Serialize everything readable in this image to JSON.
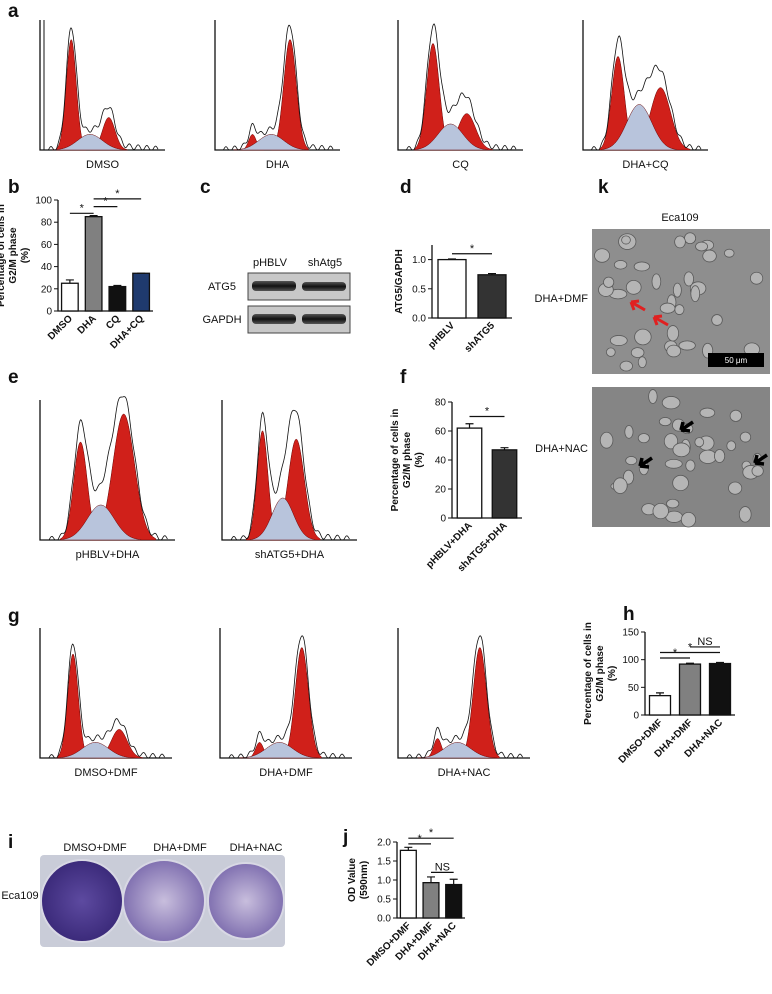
{
  "panel_letters": [
    "a",
    "b",
    "c",
    "d",
    "e",
    "f",
    "g",
    "h",
    "i",
    "j",
    "k"
  ],
  "flow": {
    "a": [
      "DMSO",
      "DHA",
      "CQ",
      "DHA+CQ"
    ],
    "e": [
      "pHBLV+DHA",
      "shATG5+DHA"
    ],
    "g": [
      "DMSO+DMF",
      "DHA+DMF",
      "DHA+NAC"
    ]
  },
  "blot": {
    "lanes": [
      "pHBLV",
      "shAtg5"
    ],
    "rows": [
      "ATG5",
      "GAPDH"
    ]
  },
  "micrograph": {
    "title": "Eca109",
    "rows": [
      "DHA+DMF",
      "DHA+NAC"
    ],
    "scale_bar": "50 μm"
  },
  "colony": {
    "lanes": [
      "DMSO+DMF",
      "DHA+DMF",
      "DHA+NAC"
    ],
    "row": "Eca109"
  },
  "chart_data": [
    {
      "type": "bar",
      "ylabel": [
        "Percentage of cells in",
        "G2/M phase",
        "(%)"
      ],
      "categories": [
        "DMSO",
        "DHA",
        "CQ",
        "DHA+CQ"
      ],
      "values": [
        25,
        85,
        22,
        34
      ],
      "errors": [
        3,
        1,
        1,
        0
      ],
      "colors": [
        "#ffffff",
        "#808080",
        "#111111",
        "#1f3a6e"
      ],
      "ylim": [
        0,
        100
      ],
      "yticks": [
        0,
        20,
        40,
        60,
        80,
        100
      ],
      "annotations": [
        "*",
        "*",
        "*"
      ]
    },
    {
      "type": "bar",
      "ylabel": [
        "ATG5/GAPDH"
      ],
      "categories": [
        "pHBLV",
        "shATG5"
      ],
      "values": [
        1.0,
        0.74
      ],
      "errors": [
        0.01,
        0.02
      ],
      "colors": [
        "#ffffff",
        "#333333"
      ],
      "ylim": [
        0,
        1.25
      ],
      "yticks": [
        {
          "value": 0,
          "label": "0.0"
        },
        {
          "value": 0.5,
          "label": "0.5"
        },
        {
          "value": 1,
          "label": "1.0"
        }
      ],
      "annotations": [
        "*"
      ]
    },
    {
      "type": "bar",
      "ylabel": [
        "Percentage of cells in",
        "G2/M phase",
        "(%)"
      ],
      "categories": [
        "pHBLV+DHA",
        "shATG5+DHA"
      ],
      "values": [
        62,
        47
      ],
      "errors": [
        3,
        1.5
      ],
      "colors": [
        "#ffffff",
        "#333333"
      ],
      "ylim": [
        0,
        80
      ],
      "yticks": [
        0,
        20,
        40,
        60,
        80
      ],
      "annotations": [
        "*"
      ]
    },
    {
      "type": "bar",
      "ylabel": [
        "Percentage of cells in",
        "G2/M phase",
        "(%)"
      ],
      "categories": [
        "DMSO+DMF",
        "DHA+DMF",
        "DHA+NAC"
      ],
      "values": [
        35,
        92,
        93
      ],
      "errors": [
        5,
        1.5,
        2
      ],
      "colors": [
        "#ffffff",
        "#808080",
        "#111111"
      ],
      "ylim": [
        0,
        150
      ],
      "yticks": [
        0,
        50,
        100,
        150
      ],
      "annotations": [
        "*",
        "*",
        "NS"
      ]
    },
    {
      "type": "bar",
      "ylabel": [
        "OD Value",
        "(590nm)"
      ],
      "categories": [
        "DMSO+DMF",
        "DHA+DMF",
        "DHA+NAC"
      ],
      "values": [
        1.78,
        0.93,
        0.88
      ],
      "errors": [
        0.08,
        0.15,
        0.14
      ],
      "colors": [
        "#ffffff",
        "#808080",
        "#111111"
      ],
      "ylim": [
        0,
        2
      ],
      "yticks": [
        {
          "value": 0,
          "label": "0.0"
        },
        {
          "value": 0.5,
          "label": "0.5"
        },
        {
          "value": 1,
          "label": "1.0"
        },
        {
          "value": 1.5,
          "label": "1.5"
        },
        {
          "value": 2,
          "label": "2.0"
        }
      ],
      "annotations": [
        "*",
        "*",
        "NS"
      ]
    }
  ]
}
